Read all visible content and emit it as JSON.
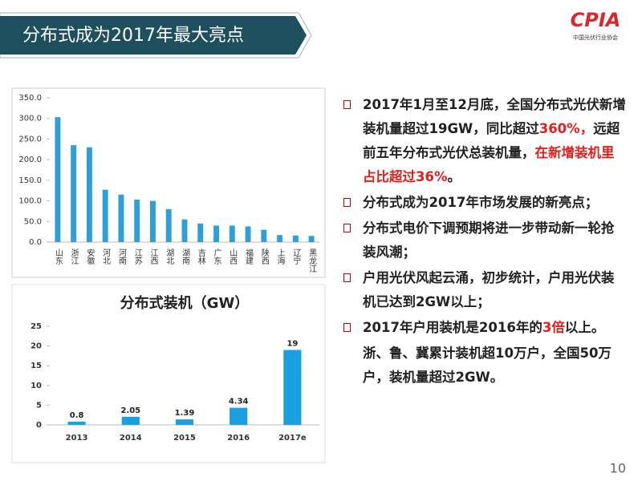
{
  "header": {
    "title": "分布式成为2017年最大亮点"
  },
  "logo": {
    "name": "CPIA",
    "subtitle": "中国光伏行业协会"
  },
  "page_number": "10",
  "chart_data": [
    {
      "type": "bar",
      "categories": [
        "山东",
        "浙江",
        "安徽",
        "河北",
        "河南",
        "江苏",
        "江西",
        "湖北",
        "湖南",
        "吉林",
        "广东",
        "山西",
        "福建",
        "陕西",
        "上海",
        "辽宁",
        "黑龙江"
      ],
      "values": [
        303,
        235,
        230,
        127,
        115,
        103,
        100,
        80,
        55,
        45,
        40,
        40,
        38,
        30,
        17,
        16,
        15
      ],
      "color": "#2e9fd8",
      "ylim": [
        0,
        350
      ],
      "yticks": [
        {
          "value": 0,
          "label": "0.0"
        },
        {
          "value": 50,
          "label": "50.0"
        },
        {
          "value": 100,
          "label": "100.0"
        },
        {
          "value": 150,
          "label": "150.0"
        },
        {
          "value": 200,
          "label": "200.0"
        },
        {
          "value": 250,
          "label": "250.0"
        },
        {
          "value": 300,
          "label": "300.0"
        },
        {
          "value": 350,
          "label": "350.0"
        }
      ],
      "grid": false
    },
    {
      "type": "bar",
      "title": "分布式装机（GW）",
      "categories": [
        "2013",
        "2014",
        "2015",
        "2016",
        "2017e"
      ],
      "values": [
        0.8,
        2.05,
        1.39,
        4.34,
        19
      ],
      "color": "#1aa0e0",
      "ylim": [
        0,
        25
      ],
      "yticks": [
        0,
        5,
        10,
        15,
        20,
        25
      ],
      "grid": false,
      "data_labels": true
    }
  ],
  "text_block": {
    "items": [
      {
        "bullet": true,
        "segments": [
          {
            "text": "2017年1月至12月底，全国分布式光伏新增装机量超过19GW，同比超过"
          },
          {
            "text": "360%，",
            "emphasis": true
          },
          {
            "text": "远超前五年分布式光伏总装机量，"
          },
          {
            "text": "在新增装机里占比超过36%",
            "emphasis": true
          },
          {
            "text": "。"
          }
        ]
      },
      {
        "bullet": true,
        "segments": [
          {
            "text": "分布式成为2017年市场发展的新亮点；"
          }
        ]
      },
      {
        "bullet": true,
        "segments": [
          {
            "text": "分布式电价下调预期将进一步带动新一轮抢装风潮；"
          }
        ]
      },
      {
        "bullet": true,
        "segments": [
          {
            "text": "户用光伏风起云涌，初步统计，户用光伏装机已达到2GW以上；"
          }
        ]
      },
      {
        "bullet": true,
        "segments": [
          {
            "text": "2017年户用装机是2016年的"
          },
          {
            "text": "3倍",
            "emphasis": true
          },
          {
            "text": "以上。"
          }
        ]
      },
      {
        "bullet": false,
        "segments": [
          {
            "text": "浙、鲁、冀累计装机超10万户，全国50万户，装机量超过2GW。"
          }
        ]
      }
    ]
  }
}
